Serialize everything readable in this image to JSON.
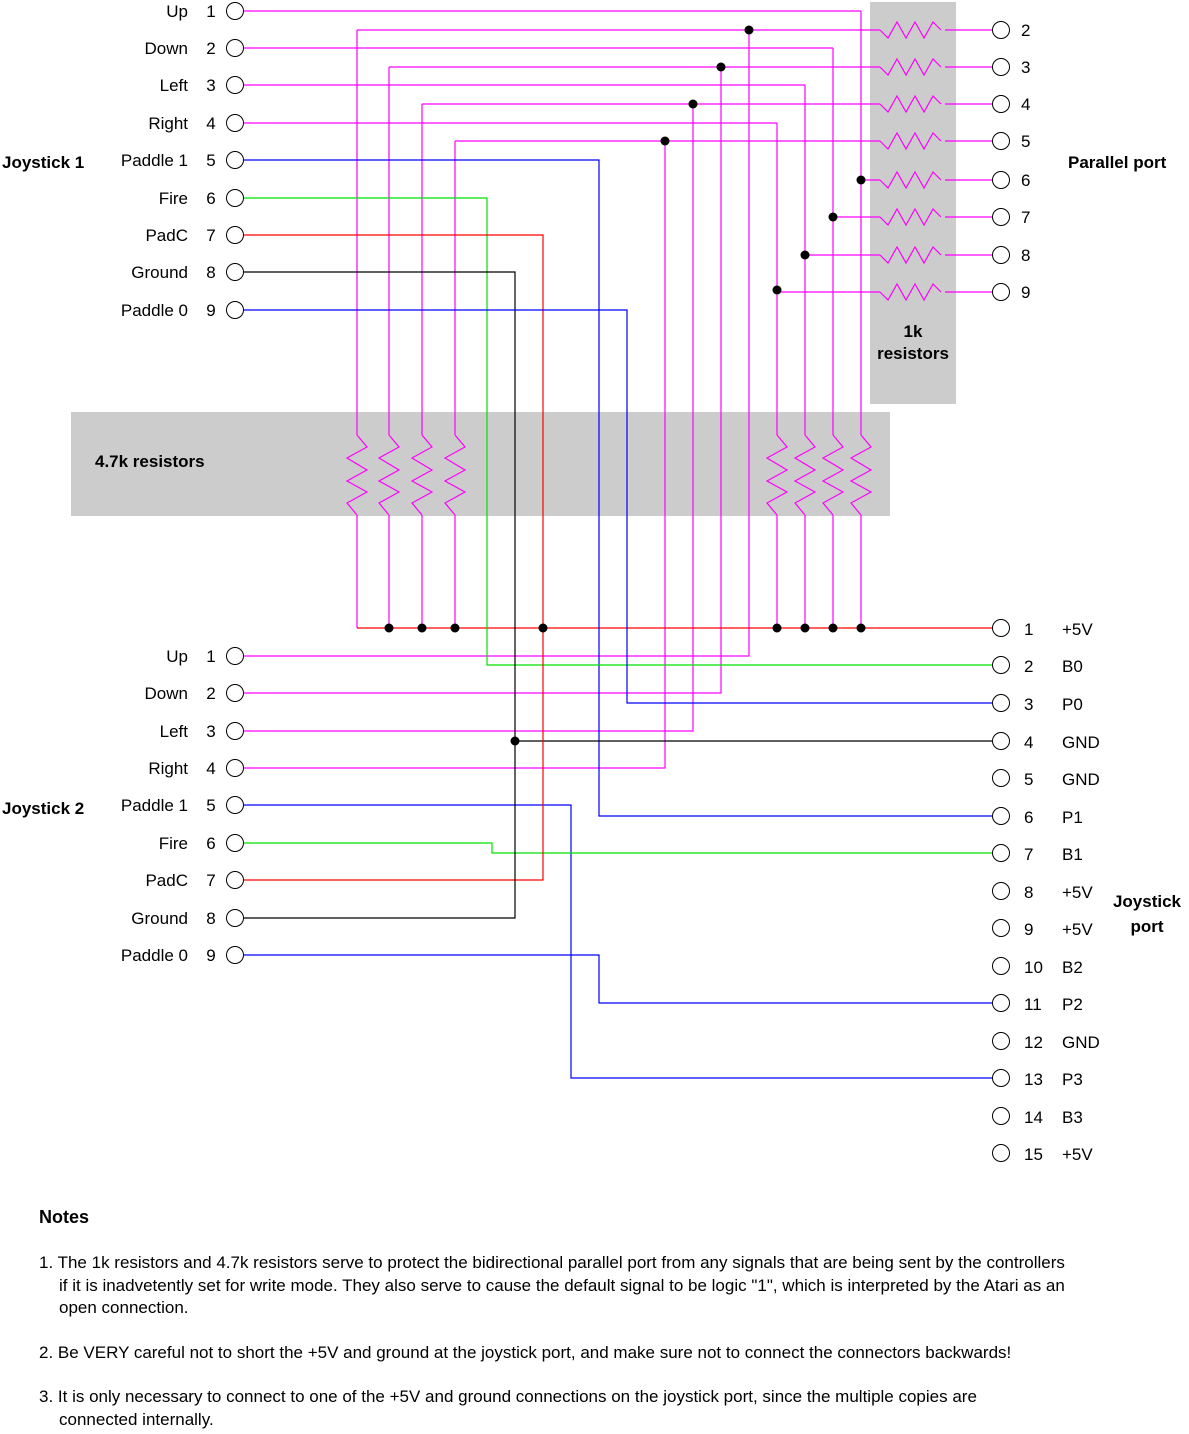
{
  "labels": {
    "joystick1": "Joystick 1",
    "joystick2": "Joystick 2",
    "parallel_port": "Parallel port",
    "joystick_port": [
      "Joystick",
      "port"
    ],
    "res_1k": [
      "1k",
      "resistors"
    ],
    "res_47k": "4.7k resistors"
  },
  "joystick_pins": [
    {
      "num": "1",
      "name": "Up"
    },
    {
      "num": "2",
      "name": "Down"
    },
    {
      "num": "3",
      "name": "Left"
    },
    {
      "num": "4",
      "name": "Right"
    },
    {
      "num": "5",
      "name": "Paddle 1"
    },
    {
      "num": "6",
      "name": "Fire"
    },
    {
      "num": "7",
      "name": "PadC"
    },
    {
      "num": "8",
      "name": "Ground"
    },
    {
      "num": "9",
      "name": "Paddle 0"
    }
  ],
  "parallel_pins": [
    "2",
    "3",
    "4",
    "5",
    "6",
    "7",
    "8",
    "9"
  ],
  "joystick_port_pins": [
    {
      "num": "1",
      "name": "+5V"
    },
    {
      "num": "2",
      "name": "B0"
    },
    {
      "num": "3",
      "name": "P0"
    },
    {
      "num": "4",
      "name": "GND"
    },
    {
      "num": "5",
      "name": "GND"
    },
    {
      "num": "6",
      "name": "P1"
    },
    {
      "num": "7",
      "name": "B1"
    },
    {
      "num": "8",
      "name": "+5V"
    },
    {
      "num": "9",
      "name": "+5V"
    },
    {
      "num": "10",
      "name": "B2"
    },
    {
      "num": "11",
      "name": "P2"
    },
    {
      "num": "12",
      "name": "GND"
    },
    {
      "num": "13",
      "name": "P3"
    },
    {
      "num": "14",
      "name": "B3"
    },
    {
      "num": "15",
      "name": "+5V"
    }
  ],
  "colors": {
    "direction": "#ff00ff",
    "paddle": "#0000ff",
    "fire": "#00e000",
    "padc": "#ff0000",
    "ground": "#000000",
    "bus_5v": "#ff0000",
    "resistor_box": "#cccccc"
  },
  "notes": {
    "heading": "Notes",
    "items": [
      [
        "1. The 1k resistors and 4.7k resistors serve to protect the bidirectional parallel port from any signals that are being sent by the controllers",
        "if it is inadvetently set for write mode. They also serve to cause the default signal to be logic \"1\", which is interpreted by the Atari as an",
        "open connection."
      ],
      [
        "2. Be VERY careful not to short the +5V and ground at the joystick port, and make sure not to connect the connectors backwards!"
      ],
      [
        "3. It is only necessary to connect to one of the +5V and ground connections on the joystick port, since the multiple copies are",
        "connected internally."
      ]
    ]
  }
}
